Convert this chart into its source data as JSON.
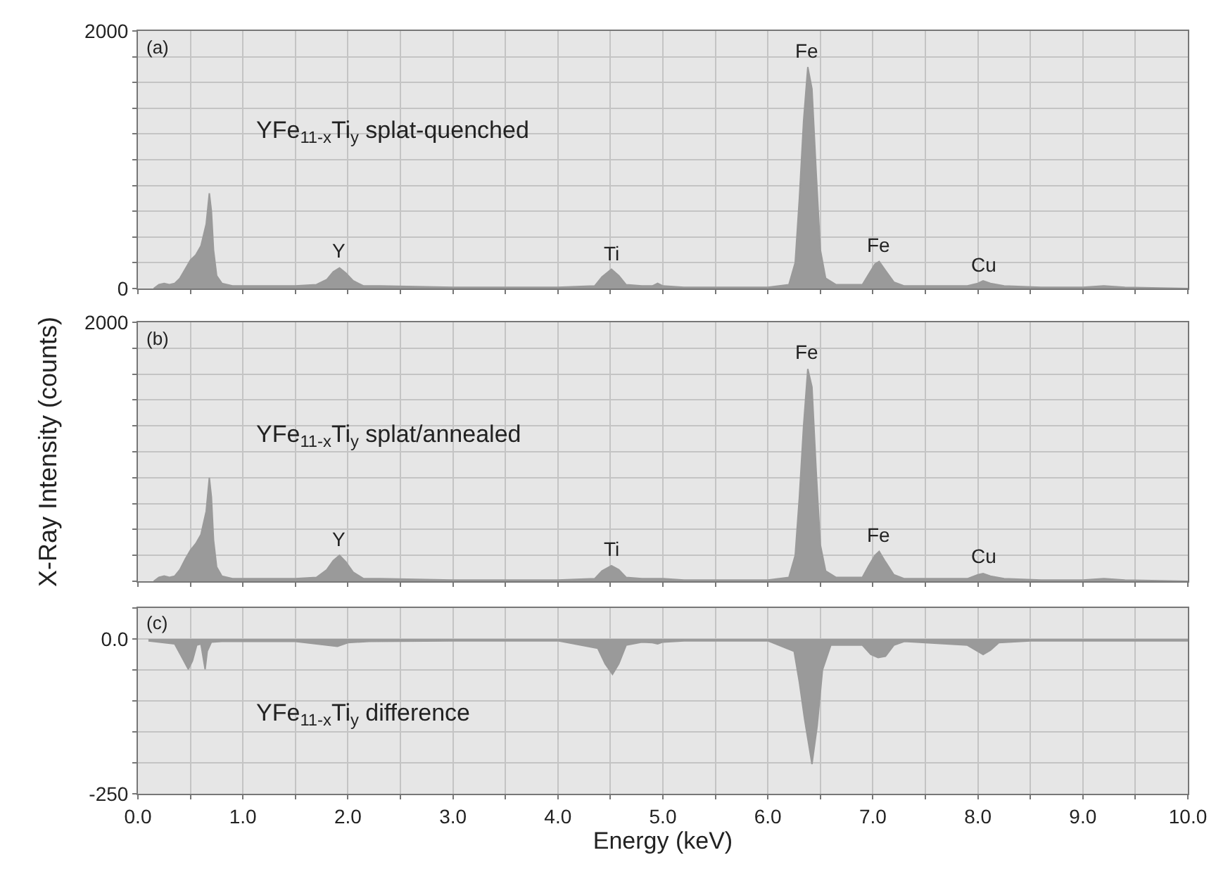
{
  "chart_data": [
    {
      "type": "area",
      "xlim": [
        0,
        10
      ],
      "ylim": [
        0,
        2000
      ],
      "tick_labels": "y",
      "grid": true,
      "xticks": [
        {
          "value": 0,
          "label": null
        },
        {
          "value": 0.5,
          "label": null
        },
        {
          "value": 1,
          "label": null
        },
        {
          "value": 1.5,
          "label": null
        },
        {
          "value": 2,
          "label": null
        },
        {
          "value": 2.5,
          "label": null
        },
        {
          "value": 3,
          "label": null
        },
        {
          "value": 3.5,
          "label": null
        },
        {
          "value": 4,
          "label": null
        },
        {
          "value": 4.5,
          "label": null
        },
        {
          "value": 5,
          "label": null
        },
        {
          "value": 5.5,
          "label": null
        },
        {
          "value": 6,
          "label": null
        },
        {
          "value": 6.5,
          "label": null
        },
        {
          "value": 7,
          "label": null
        },
        {
          "value": 7.5,
          "label": null
        },
        {
          "value": 8,
          "label": null
        },
        {
          "value": 8.5,
          "label": null
        },
        {
          "value": 9,
          "label": null
        },
        {
          "value": 9.5,
          "label": null
        },
        {
          "value": 10,
          "label": null
        }
      ],
      "yticks": [
        0,
        {
          "value": 200,
          "label": null
        },
        {
          "value": 400,
          "label": null
        },
        {
          "value": 600,
          "label": null
        },
        {
          "value": 800,
          "label": null
        },
        {
          "value": 1000,
          "label": null
        },
        {
          "value": 1200,
          "label": null
        },
        {
          "value": 1400,
          "label": null
        },
        {
          "value": 1600,
          "label": null
        },
        {
          "value": 1800,
          "label": null
        },
        2000
      ],
      "series": [
        {
          "color": "#9a9a9a",
          "x": [
            0.15,
            0.2,
            0.25,
            0.3,
            0.35,
            0.4,
            0.45,
            0.5,
            0.55,
            0.6,
            0.65,
            0.68,
            0.7,
            0.72,
            0.75,
            0.8,
            0.9,
            1.0,
            1.2,
            1.5,
            1.7,
            1.8,
            1.86,
            1.92,
            1.98,
            2.05,
            2.15,
            2.3,
            3.0,
            4.0,
            4.35,
            4.42,
            4.51,
            4.58,
            4.65,
            4.8,
            4.9,
            4.95,
            5.0,
            5.2,
            6.0,
            6.2,
            6.26,
            6.3,
            6.34,
            6.38,
            6.42,
            6.46,
            6.5,
            6.55,
            6.65,
            6.9,
            6.96,
            7.02,
            7.06,
            7.12,
            7.2,
            7.3,
            7.5,
            7.9,
            8.0,
            8.05,
            8.12,
            8.25,
            8.6,
            9.0,
            9.2,
            9.4,
            10.0
          ],
          "values": [
            0,
            30,
            40,
            30,
            40,
            80,
            150,
            220,
            260,
            330,
            500,
            740,
            600,
            300,
            100,
            40,
            20,
            20,
            20,
            20,
            30,
            70,
            130,
            160,
            120,
            60,
            20,
            20,
            10,
            10,
            20,
            90,
            150,
            100,
            30,
            20,
            20,
            40,
            20,
            10,
            10,
            30,
            200,
            700,
            1300,
            1720,
            1550,
            900,
            300,
            80,
            30,
            30,
            110,
            190,
            210,
            140,
            50,
            20,
            20,
            20,
            40,
            60,
            40,
            20,
            10,
            10,
            20,
            10,
            0
          ]
        }
      ],
      "annotations": [
        "(a)",
        "YFe$_{11-x}$Ti$_{y}$ splat-quenched",
        {
          "text": "Y",
          "x": 1.92,
          "y": 160
        },
        {
          "text": "Ti",
          "x": 4.51,
          "y": 145
        },
        {
          "text": "Fe",
          "x": 6.38,
          "y": 1720
        },
        {
          "text": "Fe",
          "x": 7.06,
          "y": 210
        },
        {
          "text": "Cu",
          "x": 8.05,
          "y": 55
        }
      ]
    },
    {
      "type": "area",
      "xlim": [
        0,
        10
      ],
      "ylim": [
        0,
        2000
      ],
      "tick_labels": "y",
      "grid": true,
      "ylabel": "X-Ray Intensity (counts)",
      "xticks": [
        {
          "value": 0,
          "label": null
        },
        {
          "value": 0.5,
          "label": null
        },
        {
          "value": 1,
          "label": null
        },
        {
          "value": 1.5,
          "label": null
        },
        {
          "value": 2,
          "label": null
        },
        {
          "value": 2.5,
          "label": null
        },
        {
          "value": 3,
          "label": null
        },
        {
          "value": 3.5,
          "label": null
        },
        {
          "value": 4,
          "label": null
        },
        {
          "value": 4.5,
          "label": null
        },
        {
          "value": 5,
          "label": null
        },
        {
          "value": 5.5,
          "label": null
        },
        {
          "value": 6,
          "label": null
        },
        {
          "value": 6.5,
          "label": null
        },
        {
          "value": 7,
          "label": null
        },
        {
          "value": 7.5,
          "label": null
        },
        {
          "value": 8,
          "label": null
        },
        {
          "value": 8.5,
          "label": null
        },
        {
          "value": 9,
          "label": null
        },
        {
          "value": 9.5,
          "label": null
        },
        {
          "value": 10,
          "label": null
        }
      ],
      "yticks": [
        0,
        {
          "value": 200,
          "label": null
        },
        {
          "value": 400,
          "label": null
        },
        {
          "value": 600,
          "label": null
        },
        {
          "value": 800,
          "label": null
        },
        {
          "value": 1000,
          "label": null
        },
        {
          "value": 1200,
          "label": null
        },
        {
          "value": 1400,
          "label": null
        },
        {
          "value": 1600,
          "label": null
        },
        {
          "value": 1800,
          "label": null
        },
        2000
      ],
      "series": [
        {
          "color": "#9a9a9a",
          "x": [
            0.15,
            0.2,
            0.25,
            0.3,
            0.35,
            0.4,
            0.45,
            0.5,
            0.55,
            0.6,
            0.65,
            0.68,
            0.7,
            0.72,
            0.75,
            0.8,
            0.9,
            1.0,
            1.2,
            1.5,
            1.7,
            1.8,
            1.86,
            1.92,
            1.98,
            2.05,
            2.15,
            2.3,
            3.0,
            4.0,
            4.35,
            4.42,
            4.51,
            4.58,
            4.65,
            4.8,
            4.9,
            4.95,
            5.0,
            5.2,
            6.0,
            6.2,
            6.26,
            6.3,
            6.34,
            6.38,
            6.42,
            6.46,
            6.5,
            6.55,
            6.65,
            6.9,
            6.96,
            7.02,
            7.06,
            7.12,
            7.2,
            7.3,
            7.5,
            7.9,
            8.0,
            8.05,
            8.12,
            8.25,
            8.6,
            9.0,
            9.2,
            9.4,
            10.0
          ],
          "values": [
            0,
            30,
            40,
            30,
            40,
            90,
            170,
            240,
            290,
            360,
            540,
            800,
            650,
            320,
            110,
            40,
            20,
            20,
            20,
            20,
            30,
            90,
            160,
            200,
            150,
            70,
            20,
            20,
            10,
            10,
            20,
            80,
            120,
            90,
            30,
            20,
            20,
            20,
            20,
            10,
            10,
            30,
            200,
            650,
            1200,
            1640,
            1500,
            850,
            280,
            80,
            30,
            30,
            120,
            200,
            230,
            150,
            50,
            20,
            20,
            20,
            50,
            60,
            40,
            20,
            10,
            10,
            20,
            10,
            0
          ]
        }
      ],
      "annotations": [
        "(b)",
        "YFe$_{11-x}$Ti$_{y}$ splat/annealed",
        {
          "text": "Y",
          "x": 1.92,
          "y": 200
        },
        {
          "text": "Ti",
          "x": 4.51,
          "y": 120
        },
        {
          "text": "Fe",
          "x": 6.38,
          "y": 1640
        },
        {
          "text": "Fe",
          "x": 7.06,
          "y": 230
        },
        {
          "text": "Cu",
          "x": 8.05,
          "y": 65
        }
      ]
    },
    {
      "type": "area",
      "xlim": [
        0,
        10
      ],
      "ylim": [
        -250,
        50
      ],
      "grid": true,
      "xlabel": "Energy (keV)",
      "xticks": [
        {
          "value": 0,
          "label": "0.0"
        },
        {
          "value": 0.5,
          "label": null
        },
        {
          "value": 1,
          "label": "1.0"
        },
        {
          "value": 1.5,
          "label": null
        },
        {
          "value": 2,
          "label": "2.0"
        },
        {
          "value": 2.5,
          "label": null
        },
        {
          "value": 3,
          "label": "3.0"
        },
        {
          "value": 3.5,
          "label": null
        },
        {
          "value": 4,
          "label": "4.0"
        },
        {
          "value": 4.5,
          "label": null
        },
        {
          "value": 5,
          "label": "5.0"
        },
        {
          "value": 5.5,
          "label": null
        },
        {
          "value": 6,
          "label": "6.0"
        },
        {
          "value": 6.5,
          "label": null
        },
        {
          "value": 7,
          "label": "7.0"
        },
        {
          "value": 7.5,
          "label": null
        },
        {
          "value": 8,
          "label": "8.0"
        },
        {
          "value": 8.5,
          "label": null
        },
        {
          "value": 9,
          "label": "9.0"
        },
        {
          "value": 9.5,
          "label": null
        },
        {
          "value": 10,
          "label": "10.0"
        }
      ],
      "yticks": [
        -250,
        {
          "value": -200,
          "label": null
        },
        {
          "value": -150,
          "label": null
        },
        {
          "value": -100,
          "label": null
        },
        {
          "value": -50,
          "label": null
        },
        {
          "value": 0,
          "label": "0.0"
        },
        {
          "value": 50,
          "label": null
        }
      ],
      "series": [
        {
          "color": "#9a9a9a",
          "x": [
            0.1,
            0.35,
            0.42,
            0.48,
            0.52,
            0.56,
            0.6,
            0.64,
            0.66,
            0.7,
            0.8,
            1.0,
            1.5,
            1.8,
            1.9,
            2.0,
            2.2,
            3.0,
            4.0,
            4.38,
            4.45,
            4.52,
            4.58,
            4.65,
            4.8,
            4.9,
            4.95,
            5.0,
            5.2,
            6.0,
            6.25,
            6.3,
            6.35,
            6.42,
            6.47,
            6.52,
            6.6,
            6.9,
            6.98,
            7.05,
            7.12,
            7.2,
            7.3,
            7.9,
            8.0,
            8.05,
            8.12,
            8.2,
            8.5,
            9.0,
            10.0
          ],
          "values": [
            -3,
            -8,
            -30,
            -49,
            -35,
            -10,
            -8,
            -49,
            -20,
            -5,
            -4,
            -4,
            -4,
            -10,
            -12,
            -6,
            -4,
            -3,
            -3,
            -15,
            -40,
            -57,
            -40,
            -10,
            -5,
            -6,
            -8,
            -5,
            -3,
            -3,
            -20,
            -70,
            -130,
            -202,
            -140,
            -50,
            -10,
            -10,
            -25,
            -30,
            -28,
            -10,
            -4,
            -10,
            -20,
            -25,
            -18,
            -6,
            -3,
            -3,
            -3
          ]
        }
      ],
      "annotations": [
        "(c)",
        "YFe$_{11-x}$Ti$_{y}$ difference"
      ]
    }
  ]
}
